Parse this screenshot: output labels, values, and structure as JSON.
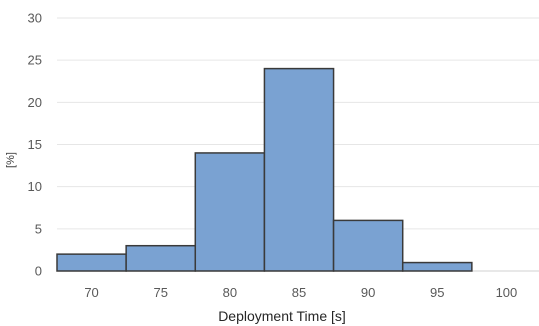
{
  "chart_data": {
    "type": "bar",
    "title": "",
    "xlabel": "Deployment Time [s]",
    "ylabel": "[%]",
    "ylim": [
      0,
      30
    ],
    "yticks": [
      0,
      5,
      10,
      15,
      20,
      25,
      30
    ],
    "xlim": [
      67.5,
      102.5
    ],
    "xticks": [
      70,
      75,
      80,
      85,
      90,
      95,
      100
    ],
    "categories": [
      "70",
      "75",
      "80",
      "85",
      "90",
      "95",
      "100"
    ],
    "values": [
      2,
      3,
      14,
      24,
      6,
      1,
      0
    ],
    "bar_color": "#7aa2d2",
    "bar_edge_color": "#3a3a3a",
    "grid": true
  }
}
